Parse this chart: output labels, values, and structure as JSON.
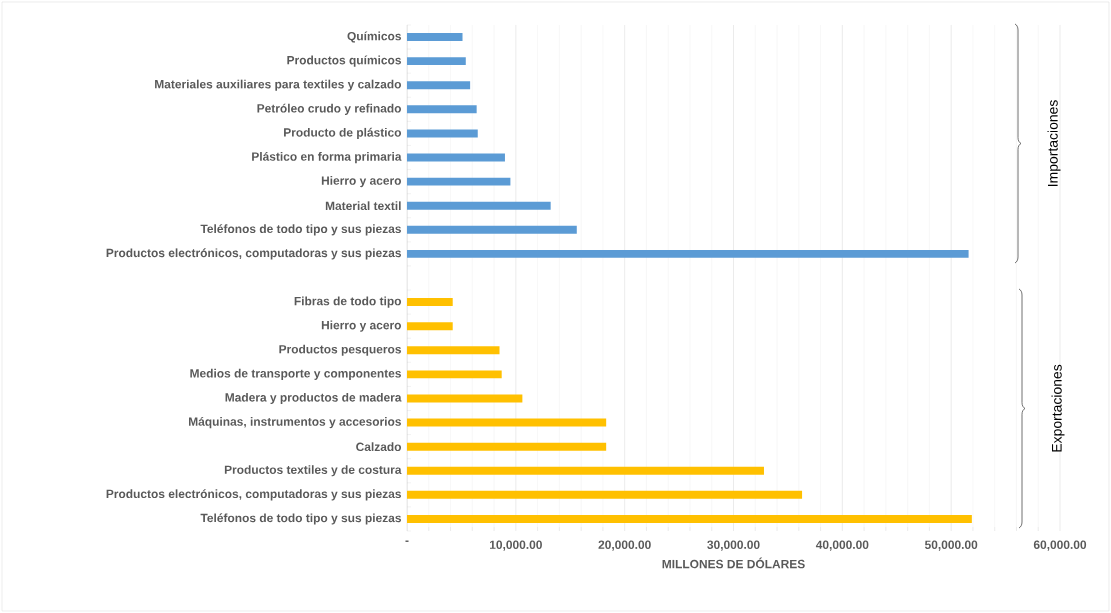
{
  "chart_data": {
    "type": "bar",
    "orientation": "horizontal",
    "xlabel": "MILLONES DE DÓLARES",
    "categories": [
      "Químicos",
      "Productos químicos",
      "Materiales auxiliares para textiles y calzado",
      "Petróleo crudo y refinado",
      "Producto de plástico",
      "Plástico en forma primaria",
      "Hierro y acero",
      "Material textil",
      "Teléfonos de todo tipo y sus piezas",
      "Productos electrónicos, computadoras y sus piezas",
      null,
      "Fibras de todo tipo",
      "Hierro y acero",
      "Productos pesqueros",
      "Medios de transporte y componentes",
      "Madera y productos de madera",
      "Máquinas, instrumentos y accesorios",
      "Calzado",
      "Productos textiles y de costura",
      "Productos electrónicos, computadoras y sus piezas",
      "Teléfonos de todo tipo y sus piezas"
    ],
    "series": [
      {
        "name": "Importaciones",
        "color": "#5b9bd5",
        "values": [
          5100,
          5400,
          5800,
          6400,
          6500,
          9000,
          9500,
          13200,
          15600,
          51600,
          null,
          null,
          null,
          null,
          null,
          null,
          null,
          null,
          null,
          null,
          null
        ]
      },
      {
        "name": "Exportaciones",
        "color": "#ffc000",
        "values": [
          null,
          null,
          null,
          null,
          null,
          null,
          null,
          null,
          null,
          null,
          null,
          4200,
          4200,
          8500,
          8700,
          10600,
          18300,
          18300,
          32800,
          36300,
          51900
        ]
      }
    ],
    "xlim": [
      0,
      60000
    ],
    "xticks": [
      {
        "value": 0,
        "label": "-"
      },
      {
        "value": 10000,
        "label": "10,000.00"
      },
      {
        "value": 20000,
        "label": "20,000.00"
      },
      {
        "value": 30000,
        "label": "30,000.00"
      },
      {
        "value": 40000,
        "label": "40,000.00"
      },
      {
        "value": 50000,
        "label": "50,000.00"
      },
      {
        "value": 60000,
        "label": "60,000.00"
      }
    ],
    "grid": "x"
  }
}
